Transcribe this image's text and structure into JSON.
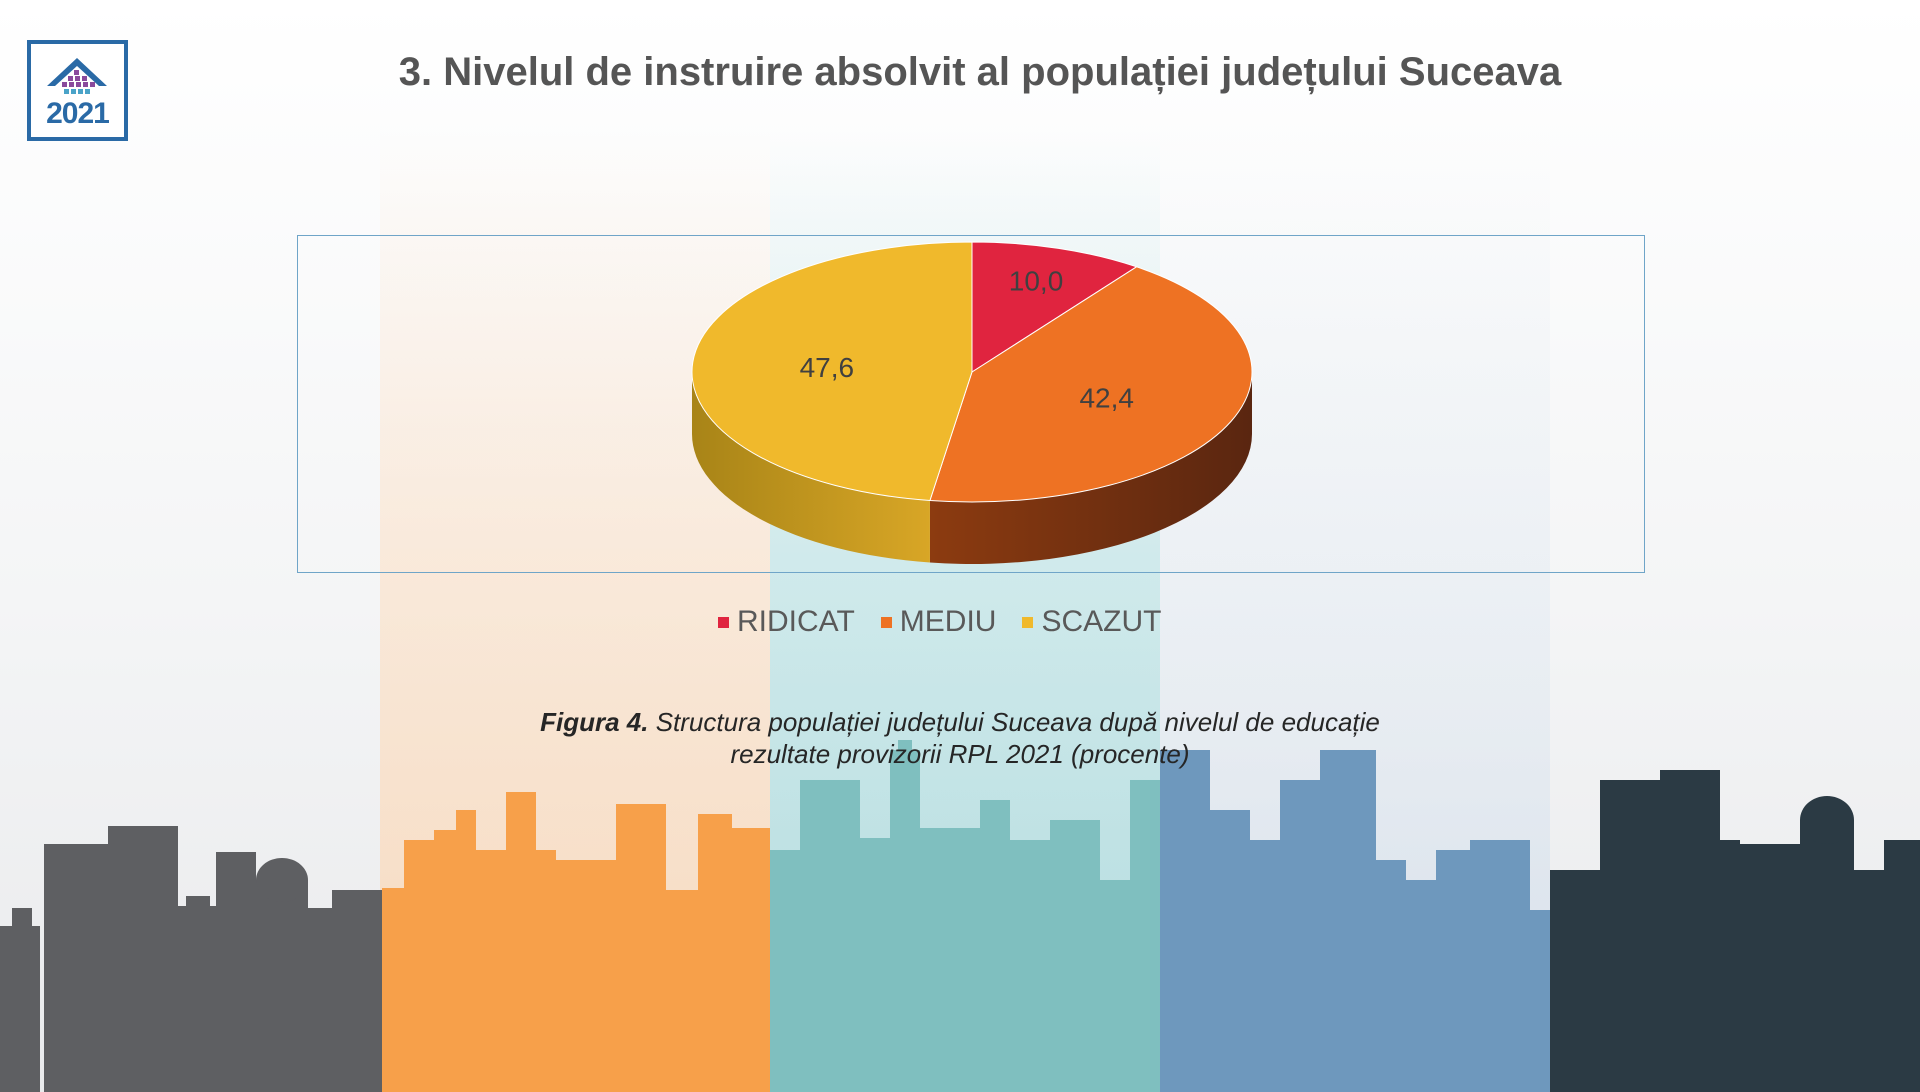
{
  "logo": {
    "year": "2021",
    "icon": "house-logo-icon"
  },
  "title": "3. Nivelul de instruire absolvit al populației județului Suceava",
  "chart_data": {
    "type": "pie",
    "categories": [
      "RIDICAT",
      "MEDIU",
      "SCAZUT"
    ],
    "values": [
      10.0,
      42.4,
      47.6
    ],
    "value_labels": [
      "10,0",
      "42,4",
      "47,6"
    ],
    "colors": [
      "#e0243f",
      "#ee7223",
      "#f0b92c"
    ],
    "style": "3d",
    "legend_position": "bottom",
    "title": ""
  },
  "legend": [
    {
      "label": "RIDICAT",
      "color": "#e0243f"
    },
    {
      "label": "MEDIU",
      "color": "#ee7223"
    },
    {
      "label": "SCAZUT",
      "color": "#f0b92c"
    }
  ],
  "caption": {
    "prefix": "Figura 4.",
    "line1": " Structura populației județului Suceava după nivelul de educație",
    "line2": "rezultate provizorii RPL 2021 (procente)"
  },
  "colors": {
    "skyline_gray": "#5e5f62",
    "skyline_orange": "#f7a04a",
    "skyline_teal": "#7fbfbf",
    "skyline_blue": "#6e98bd",
    "skyline_dark": "#2b3a44"
  }
}
